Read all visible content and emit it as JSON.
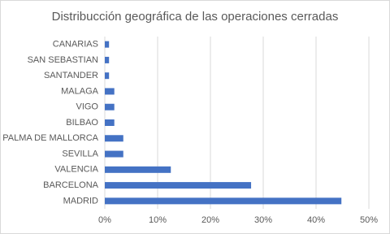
{
  "chart_data": {
    "type": "barh",
    "title": "Distribucción geográfica de las operaciones cerradas",
    "categories": [
      "CANARIAS",
      "SAN SEBASTIAN",
      "SANTANDER",
      "MALAGA",
      "VIGO",
      "BILBAO",
      "PALMA DE MALLORCA",
      "SEVILLA",
      "VALENCIA",
      "BARCELONA",
      "MADRID"
    ],
    "values": [
      0.8,
      0.8,
      0.8,
      1.8,
      1.8,
      1.8,
      3.5,
      3.5,
      12.5,
      27.7,
      44.8
    ],
    "color": "#4472c4",
    "xlim": [
      0,
      50
    ],
    "xticks": [
      {
        "value": 0,
        "label": "0%"
      },
      {
        "value": 10,
        "label": "10%"
      },
      {
        "value": 20,
        "label": "20%"
      },
      {
        "value": 30,
        "label": "30%"
      },
      {
        "value": 40,
        "label": "40%"
      },
      {
        "value": 50,
        "label": "50%"
      }
    ],
    "grid": true
  }
}
